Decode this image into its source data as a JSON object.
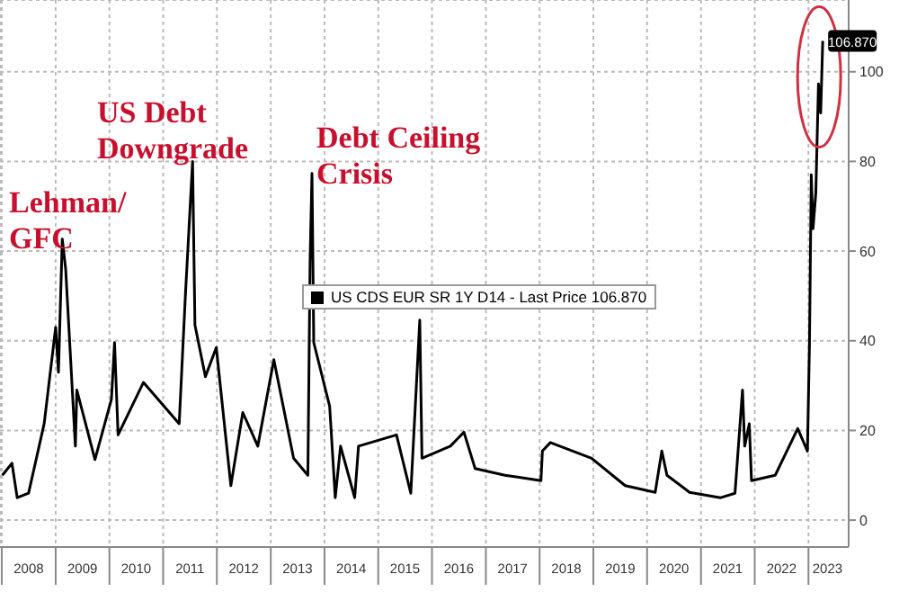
{
  "chart_data": {
    "type": "line",
    "x": [
      "2008-01-05",
      "2008-03-10",
      "2008-04-15",
      "2008-07-01",
      "2008-10-15",
      "2009-01-01",
      "2009-01-20",
      "2009-02-15",
      "2009-03-10",
      "2009-05-15",
      "2009-05-25",
      "2009-09-25",
      "2010-01-15",
      "2010-02-05",
      "2010-03-01",
      "2010-08-20",
      "2011-04-20",
      "2011-06-01",
      "2011-07-20",
      "2011-08-05",
      "2011-10-15",
      "2011-12-28",
      "2012-04-05",
      "2012-06-25",
      "2012-10-05",
      "2013-01-22",
      "2013-06-05",
      "2013-09-10",
      "2013-09-25",
      "2013-10-08",
      "2013-10-20",
      "2014-02-05",
      "2014-03-15",
      "2014-04-20",
      "2014-07-25",
      "2014-08-20",
      "2015-05-05",
      "2015-08-10",
      "2015-10-10",
      "2015-10-25",
      "2016-05-05",
      "2016-08-05",
      "2016-10-20",
      "2017-05-10",
      "2017-08-05",
      "2018-01-10",
      "2018-01-20",
      "2018-03-15",
      "2018-12-20",
      "2019-08-05",
      "2020-02-25",
      "2020-04-10",
      "2020-05-15",
      "2020-10-15",
      "2021-05-15",
      "2021-08-20",
      "2021-10-10",
      "2021-10-25",
      "2021-11-25",
      "2021-12-10",
      "2022-05-20",
      "2022-10-20",
      "2022-12-25",
      "2023-01-08",
      "2023-01-20",
      "2023-02-01",
      "2023-02-20",
      "2023-03-10",
      "2023-03-25",
      "2023-04-08"
    ],
    "series": [
      {
        "name": "US CDS EUR SR 1Y D14 - Last Price 106.870",
        "color": "#000000",
        "values": [
          10,
          12.7,
          5,
          6,
          21.5,
          43,
          33,
          62.7,
          56,
          16.5,
          29,
          13.5,
          27,
          39.6,
          19,
          30.7,
          21.5,
          50,
          80,
          43.5,
          32,
          38.5,
          7.7,
          24,
          16.5,
          35.8,
          13.8,
          10,
          57.7,
          77.3,
          39.6,
          25.4,
          5,
          16.5,
          5,
          16.5,
          19,
          6,
          44.6,
          13.8,
          16.5,
          19.6,
          11.5,
          10,
          9.6,
          8.8,
          15.4,
          17.3,
          13.8,
          7.7,
          6.2,
          15.4,
          10,
          6.2,
          5,
          6,
          29,
          16.5,
          21.5,
          8.8,
          10,
          20.4,
          15.4,
          39.6,
          77,
          65,
          73,
          97.3,
          90.8,
          106.87
        ],
        "value_labels": [
          null,
          null,
          null,
          null,
          null,
          null,
          null,
          null,
          null,
          null,
          null,
          null,
          null,
          null,
          null,
          null,
          null,
          null,
          null,
          null,
          null,
          null,
          null,
          null,
          null,
          null,
          null,
          null,
          null,
          null,
          null,
          null,
          null,
          null,
          null,
          null,
          null,
          null,
          null,
          null,
          null,
          null,
          null,
          null,
          null,
          null,
          null,
          null,
          null,
          null,
          null,
          null,
          null,
          null,
          null,
          null,
          null,
          null,
          null,
          null,
          null,
          null,
          null,
          null,
          null,
          null,
          null,
          null,
          null,
          "106.870"
        ]
      }
    ],
    "xlim": [
      "2007-12-20",
      "2023-10-01"
    ],
    "xticks": [
      {
        "value": "2008-01-01",
        "label": null
      },
      {
        "value": "2008-07-02",
        "label": "2008"
      },
      {
        "value": "2009-01-01",
        "label": null
      },
      {
        "value": "2009-07-02",
        "label": "2009"
      },
      {
        "value": "2010-01-01",
        "label": null
      },
      {
        "value": "2010-07-02",
        "label": "2010"
      },
      {
        "value": "2011-01-01",
        "label": null
      },
      {
        "value": "2011-07-02",
        "label": "2011"
      },
      {
        "value": "2012-01-01",
        "label": null
      },
      {
        "value": "2012-07-02",
        "label": "2012"
      },
      {
        "value": "2013-01-01",
        "label": null
      },
      {
        "value": "2013-07-02",
        "label": "2013"
      },
      {
        "value": "2014-01-01",
        "label": null
      },
      {
        "value": "2014-07-02",
        "label": "2014"
      },
      {
        "value": "2015-01-01",
        "label": null
      },
      {
        "value": "2015-07-02",
        "label": "2015"
      },
      {
        "value": "2016-01-01",
        "label": null
      },
      {
        "value": "2016-07-02",
        "label": "2016"
      },
      {
        "value": "2017-01-01",
        "label": null
      },
      {
        "value": "2017-07-02",
        "label": "2017"
      },
      {
        "value": "2018-01-01",
        "label": null
      },
      {
        "value": "2018-07-02",
        "label": "2018"
      },
      {
        "value": "2019-01-01",
        "label": null
      },
      {
        "value": "2019-07-02",
        "label": "2019"
      },
      {
        "value": "2020-01-01",
        "label": null
      },
      {
        "value": "2020-07-02",
        "label": "2020"
      },
      {
        "value": "2021-01-01",
        "label": null
      },
      {
        "value": "2021-07-02",
        "label": "2021"
      },
      {
        "value": "2022-01-01",
        "label": null
      },
      {
        "value": "2022-07-02",
        "label": "2022"
      },
      {
        "value": "2023-01-01",
        "label": null
      },
      {
        "value": "2023-05-10",
        "label": "2023"
      }
    ],
    "ylim": [
      -6,
      116
    ],
    "yticks": [
      0,
      20,
      40,
      60,
      80,
      100
    ],
    "grid": true,
    "legend": "right",
    "marker": "none",
    "line_style": "solid",
    "annotations": [
      "Lehman/\nGFC",
      "US Debt\nDowngrade",
      "Debt Ceiling\nCrisis"
    ]
  }
}
